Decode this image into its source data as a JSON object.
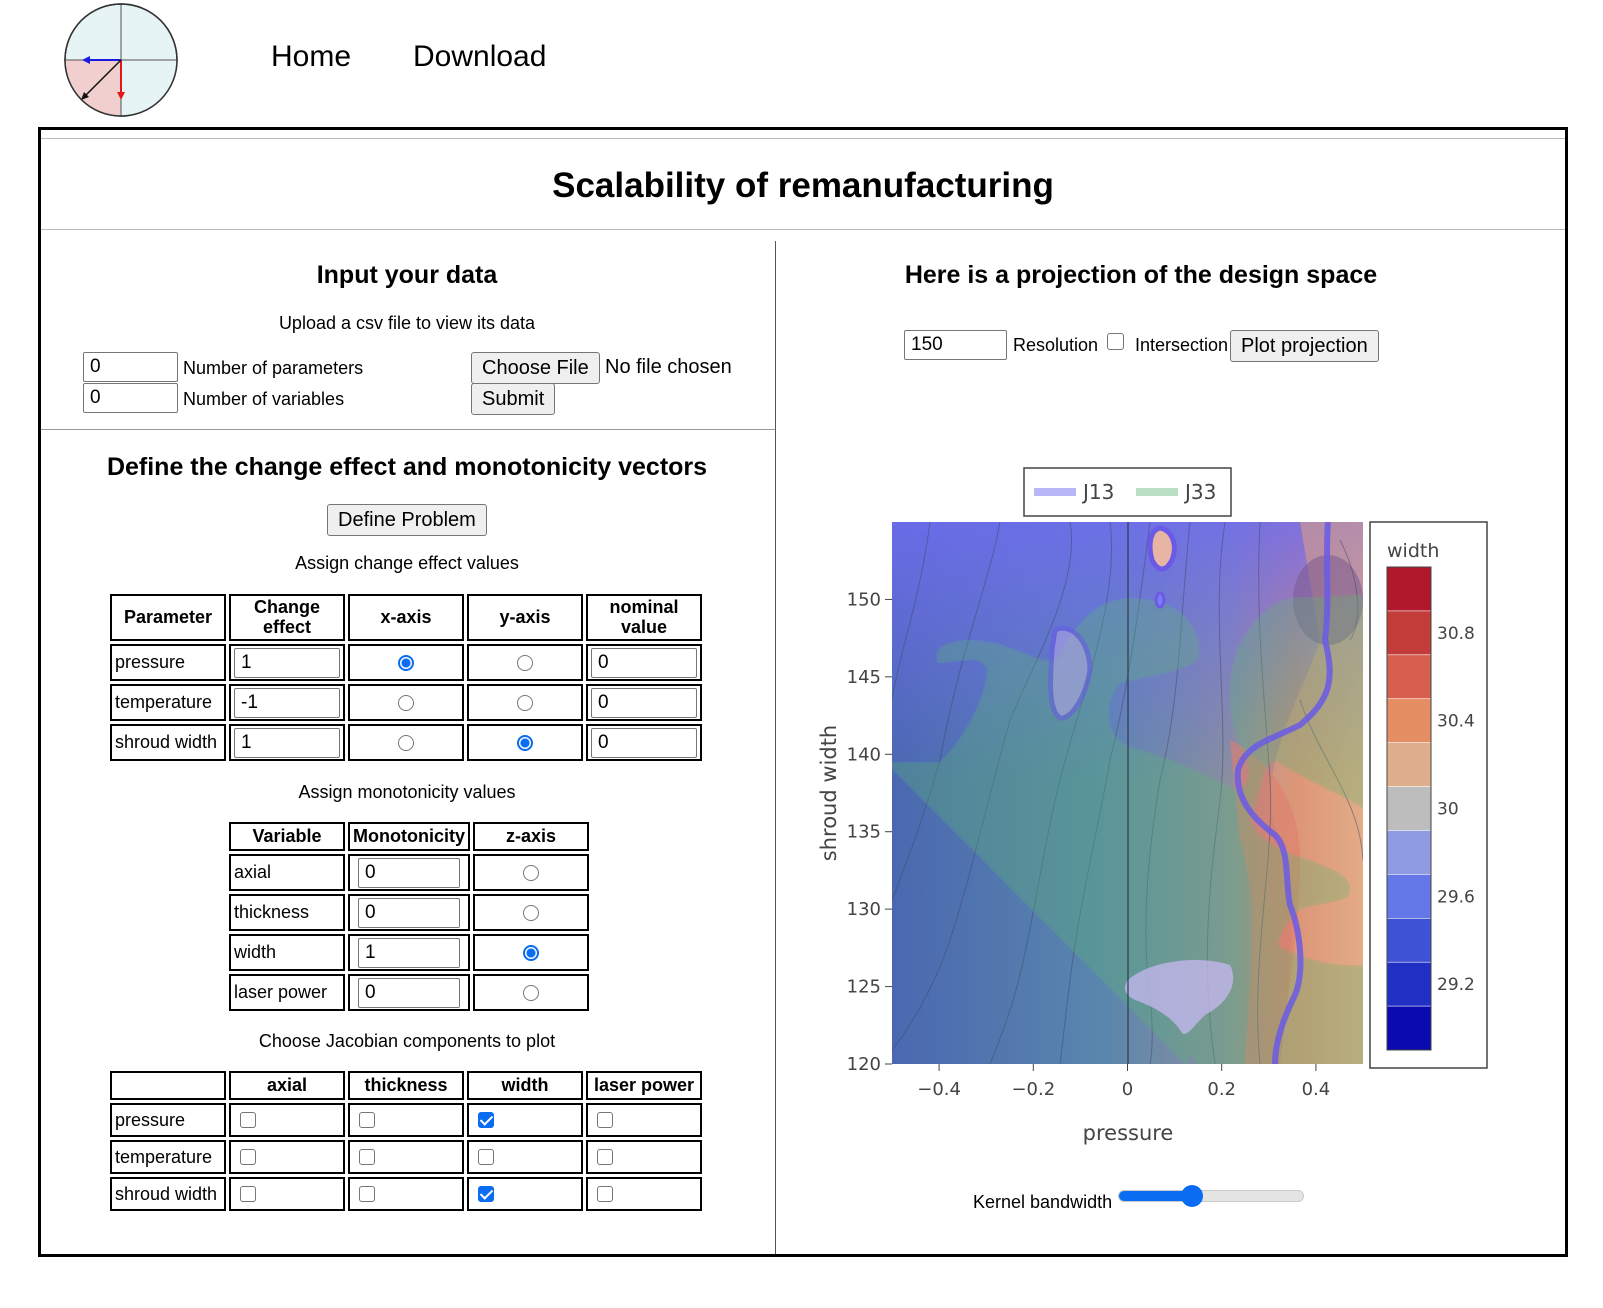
{
  "nav": {
    "home": "Home",
    "download": "Download"
  },
  "page_title": "Scalability of remanufacturing",
  "input_section": {
    "title": "Input your data",
    "upload_text": "Upload a csv file to view its data",
    "num_params_value": "0",
    "num_params_label": "Number of parameters",
    "num_vars_value": "0",
    "num_vars_label": "Number of variables",
    "choose_file": "Choose File",
    "no_file": "No file chosen",
    "submit": "Submit"
  },
  "define_section": {
    "title": "Define the change effect and monotonicity vectors",
    "define_button": "Define Problem",
    "change_effect_caption": "Assign change effect values",
    "change_headers": [
      "Parameter",
      "Change effect",
      "x-axis",
      "y-axis",
      "nominal value"
    ],
    "change_rows": [
      {
        "param": "pressure",
        "effect": "1",
        "nominal": "0",
        "axis": "x"
      },
      {
        "param": "temperature",
        "effect": "-1",
        "nominal": "0",
        "axis": "none"
      },
      {
        "param": "shroud width",
        "effect": "1",
        "nominal": "0",
        "axis": "y"
      }
    ],
    "monotonicity_caption": "Assign monotonicity values",
    "mono_headers": [
      "Variable",
      "Monotonicity",
      "z-axis"
    ],
    "mono_rows": [
      {
        "variable": "axial",
        "value": "0",
        "z": false
      },
      {
        "variable": "thickness",
        "value": "0",
        "z": false
      },
      {
        "variable": "width",
        "value": "1",
        "z": true
      },
      {
        "variable": "laser power",
        "value": "0",
        "z": false
      }
    ],
    "jacobian_caption": "Choose Jacobian components to plot",
    "jac_headers": [
      "",
      "axial",
      "thickness",
      "width",
      "laser power"
    ],
    "jac_rows": [
      {
        "param": "pressure",
        "checks": [
          false,
          false,
          true,
          false
        ]
      },
      {
        "param": "temperature",
        "checks": [
          false,
          false,
          false,
          false
        ]
      },
      {
        "param": "shroud width",
        "checks": [
          false,
          false,
          true,
          false
        ]
      }
    ]
  },
  "projection_section": {
    "title": "Here is a projection of the design space",
    "resolution_value": "150",
    "resolution_label": "Resolution",
    "intersection_label": "Intersection",
    "intersection_checked": false,
    "plot_button": "Plot projection",
    "kernel_label": "Kernel bandwidth",
    "kernel_value": 0.4
  },
  "colors": {
    "j13": "#7b7bf7",
    "j33": "#5cb870",
    "radio_on": "#0a6cf0"
  },
  "chart_data": {
    "type": "heatmap",
    "subtype": "contour",
    "xlabel": "pressure",
    "ylabel": "shroud width",
    "xlim": [
      -0.5,
      0.5
    ],
    "ylim": [
      120,
      155
    ],
    "x_ticks": [
      "−0.4",
      "−0.2",
      "0",
      "0.2",
      "0.4"
    ],
    "x_tick_values": [
      -0.4,
      -0.2,
      0,
      0.2,
      0.4
    ],
    "y_ticks": [
      "120",
      "125",
      "130",
      "135",
      "140",
      "145",
      "150"
    ],
    "y_tick_values": [
      120,
      125,
      130,
      135,
      140,
      145,
      150
    ],
    "legend": [
      {
        "name": "J13",
        "color": "#7b7bf7"
      },
      {
        "name": "J33",
        "color": "#5cb870"
      }
    ],
    "legend_position": "top",
    "colorbar": {
      "title": "width",
      "tick_labels": [
        "30.8",
        "30.4",
        "30",
        "29.6",
        "29.2"
      ],
      "tick_values": [
        30.8,
        30.4,
        30.0,
        29.6,
        29.2
      ],
      "range": [
        28.9,
        31.1
      ],
      "colors": [
        "#b2182b",
        "#c43c39",
        "#d6604d",
        "#e58e63",
        "#dfae8e",
        "#bdbdbd",
        "#8f9be0",
        "#6477e6",
        "#3e52d6",
        "#2030c4",
        "#0a0ab0"
      ]
    },
    "grid": false
  }
}
